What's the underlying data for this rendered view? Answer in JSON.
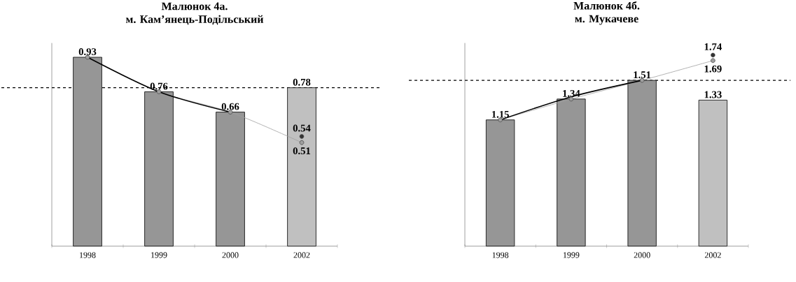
{
  "chart_data": [
    {
      "type": "bar",
      "title": "Малюнок 4а.",
      "subtitle": "м. Кам’янець-Подільський",
      "categories": [
        "1998",
        "1999",
        "2000",
        "2002"
      ],
      "ylim": [
        0,
        1.0
      ],
      "tick_labels": "x",
      "series": [
        {
          "colors": [
            "#969696",
            "#969696",
            "#969696",
            "#c0c0c0"
          ],
          "values": [
            0.93,
            0.76,
            0.66,
            0.78
          ],
          "value_labels": [
            "0.93",
            "0.76",
            "0.66",
            "0.78"
          ]
        },
        {
          "type": "line",
          "color": "#a0a0a0",
          "marker": "circle",
          "values": [
            0.93,
            0.76,
            0.66,
            0.51
          ],
          "value_labels": [
            null,
            null,
            null,
            "0.51"
          ]
        },
        {
          "type": "line",
          "color": "#000000",
          "marker": "none",
          "values": [
            0.93,
            0.76,
            0.66,
            null
          ]
        },
        {
          "type": "scatter",
          "color": "#333333",
          "marker": "circle",
          "values": [
            null,
            null,
            null,
            0.54
          ],
          "value_labels": [
            null,
            null,
            null,
            "0.54"
          ]
        }
      ],
      "ref_lines": [
        {
          "axis": "y",
          "value": 0.78,
          "color": "#000000",
          "line_style": "dashed"
        }
      ]
    },
    {
      "type": "bar",
      "title": "Малюнок 4б.",
      "subtitle": "м. Мукачеве",
      "categories": [
        "1998",
        "1999",
        "2000",
        "2002"
      ],
      "ylim": [
        0,
        1.85
      ],
      "tick_labels": "x",
      "series": [
        {
          "colors": [
            "#969696",
            "#969696",
            "#969696",
            "#c0c0c0"
          ],
          "values": [
            1.15,
            1.34,
            1.51,
            1.33
          ],
          "value_labels": [
            "1.15",
            "1.34",
            "1.51",
            "1.33"
          ]
        },
        {
          "type": "line",
          "color": "#a0a0a0",
          "marker": "circle",
          "values": [
            1.15,
            1.34,
            1.51,
            1.69
          ],
          "value_labels": [
            null,
            null,
            null,
            "1.69"
          ]
        },
        {
          "type": "line",
          "color": "#000000",
          "marker": "none",
          "values": [
            1.15,
            1.36,
            1.51,
            null
          ]
        },
        {
          "type": "scatter",
          "color": "#333333",
          "marker": "circle",
          "values": [
            null,
            null,
            null,
            1.74
          ],
          "value_labels": [
            null,
            null,
            null,
            "1.74"
          ]
        }
      ],
      "ref_lines": [
        {
          "axis": "y",
          "value": 1.51,
          "color": "#000000",
          "line_style": "dashed"
        }
      ]
    }
  ]
}
